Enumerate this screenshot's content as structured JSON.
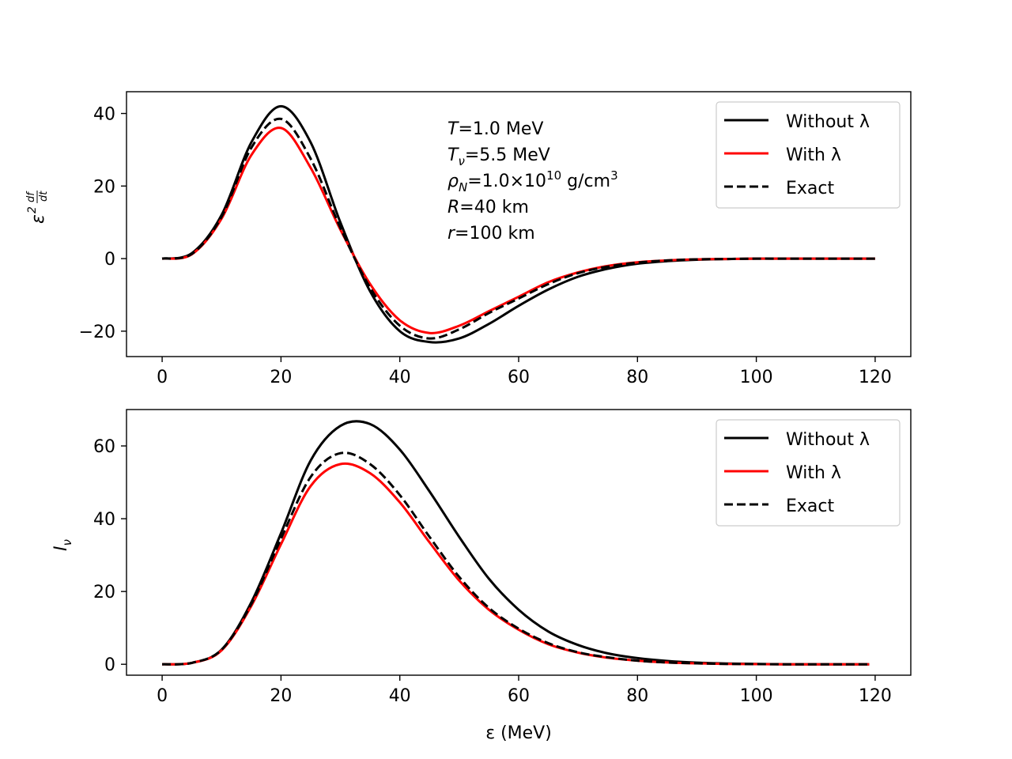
{
  "chart_data": [
    {
      "type": "line",
      "ylabel": "ε²df/dt",
      "xlabel": "",
      "xlim": [
        -6,
        126
      ],
      "ylim": [
        -27,
        46
      ],
      "xticks": [
        0,
        20,
        40,
        60,
        80,
        100,
        120
      ],
      "yticks": [
        -20,
        0,
        20,
        40
      ],
      "ytick_labels": [
        "−20",
        "0",
        "20",
        "40"
      ],
      "legend_position": "top-right",
      "annotation": {
        "T": {
          "sym": "T",
          "val": "=1.0 MeV"
        },
        "Tnu": {
          "sym": "T",
          "sub": "ν",
          "val": "=5.5 MeV"
        },
        "rho": {
          "sym": "ρ",
          "sub": "N",
          "val": "=1.0×10",
          "exp": "10",
          "unit": " g/cm",
          "unit_exp": "3"
        },
        "R": {
          "sym": "R",
          "val": "=40 km"
        },
        "r": {
          "sym": "r",
          "val": "=100 km"
        }
      },
      "x": [
        0,
        5,
        10,
        15,
        20,
        25,
        30,
        35,
        40,
        45,
        50,
        55,
        60,
        65,
        70,
        75,
        80,
        85,
        90,
        95,
        100,
        105,
        110,
        115,
        120
      ],
      "series": [
        {
          "name": "Without λ",
          "color": "#000000",
          "dash": "solid",
          "values": [
            0,
            1.5,
            12,
            32,
            42,
            32,
            10,
            -9,
            -20,
            -23,
            -22,
            -18,
            -13,
            -8.5,
            -5,
            -2.8,
            -1.4,
            -0.7,
            -0.3,
            -0.1,
            0,
            0,
            0,
            0,
            0
          ]
        },
        {
          "name": "With λ",
          "color": "#ff0000",
          "dash": "solid",
          "values": [
            0,
            1.2,
            11,
            28.5,
            36,
            25,
            8,
            -7,
            -17,
            -20.5,
            -18.5,
            -14.5,
            -10.5,
            -6.5,
            -3.8,
            -2,
            -1,
            -0.5,
            -0.2,
            -0.1,
            0,
            0,
            0,
            0,
            0
          ]
        },
        {
          "name": "Exact",
          "color": "#000000",
          "dash": "dashed",
          "values": [
            0,
            1.3,
            11.5,
            30.5,
            38.5,
            27.5,
            8.5,
            -8,
            -18.5,
            -22,
            -19.5,
            -15,
            -11,
            -7,
            -4,
            -2.2,
            -1.1,
            -0.5,
            -0.2,
            -0.1,
            0,
            0,
            0,
            0,
            0
          ]
        }
      ]
    },
    {
      "type": "line",
      "ylabel": "I",
      "ylabel_sub": "ν",
      "xlabel": "ε (MeV)",
      "xlim": [
        -6,
        126
      ],
      "ylim": [
        -3,
        70
      ],
      "xticks": [
        0,
        20,
        40,
        60,
        80,
        100,
        120
      ],
      "yticks": [
        0,
        20,
        40,
        60
      ],
      "ytick_labels": [
        "0",
        "20",
        "40",
        "60"
      ],
      "legend_position": "top-right",
      "x": [
        0,
        5,
        10,
        15,
        20,
        25,
        30,
        35,
        40,
        45,
        50,
        55,
        60,
        65,
        70,
        75,
        80,
        85,
        90,
        95,
        100,
        105,
        110,
        115,
        119
      ],
      "series": [
        {
          "name": "Without λ",
          "color": "#000000",
          "dash": "solid",
          "values": [
            0,
            0.4,
            4,
            17,
            36,
            56,
            65.5,
            66,
            59,
            47.5,
            35,
            23.5,
            15,
            9,
            5.3,
            3,
            1.7,
            0.9,
            0.45,
            0.2,
            0.1,
            0,
            0,
            0,
            0
          ]
        },
        {
          "name": "With λ",
          "color": "#ff0000",
          "dash": "solid",
          "values": [
            0,
            0.4,
            3.8,
            16,
            33,
            49,
            55,
            52.5,
            44.5,
            33.5,
            23,
            15,
            9.5,
            5.5,
            3.2,
            1.8,
            1,
            0.5,
            0.25,
            0.1,
            0.05,
            0,
            0,
            0,
            0
          ]
        },
        {
          "name": "Exact",
          "color": "#000000",
          "dash": "dashed",
          "values": [
            0,
            0.4,
            4,
            16.5,
            34.5,
            51.5,
            58,
            55,
            46.5,
            35,
            24,
            15.5,
            9.8,
            5.8,
            3.3,
            1.9,
            1,
            0.5,
            0.25,
            0.1,
            0.05,
            0,
            0,
            0,
            0
          ]
        }
      ]
    }
  ]
}
